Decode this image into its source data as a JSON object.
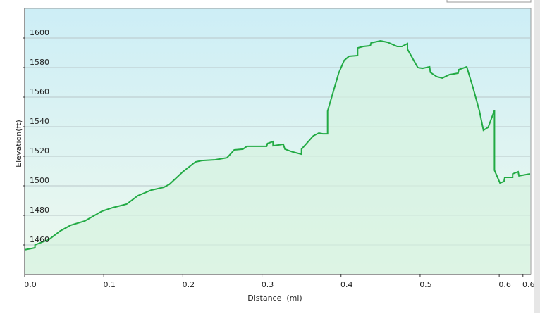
{
  "chart_data": {
    "type": "area-line",
    "x_label": "Distance  (mi)",
    "y_label": "Elevation(ft)",
    "x": [
      0,
      0.013,
      0.013,
      0.031,
      0.045,
      0.058,
      0.076,
      0.098,
      0.111,
      0.129,
      0.143,
      0.16,
      0.176,
      0.183,
      0.2,
      0.216,
      0.224,
      0.241,
      0.256,
      0.265,
      0.276,
      0.281,
      0.306,
      0.307,
      0.314,
      0.314,
      0.327,
      0.329,
      0.339,
      0.35,
      0.35,
      0.365,
      0.372,
      0.377,
      0.383,
      0.383,
      0.397,
      0.404,
      0.41,
      0.421,
      0.421,
      0.428,
      0.437,
      0.438,
      0.45,
      0.459,
      0.471,
      0.477,
      0.484,
      0.484,
      0.49,
      0.497,
      0.503,
      0.512,
      0.513,
      0.521,
      0.528,
      0.537,
      0.548,
      0.549,
      0.559,
      0.561,
      0.567,
      0.575,
      0.58,
      0.586,
      0.594,
      0.594,
      0.601,
      0.606,
      0.607,
      0.617,
      0.617,
      0.624,
      0.625,
      0.639
    ],
    "values": [
      1456.7,
      1458.1,
      1460,
      1463.8,
      1469.5,
      1473.3,
      1476.2,
      1482.9,
      1485.2,
      1487.6,
      1493.3,
      1497.1,
      1499,
      1501,
      1509.5,
      1516.2,
      1517.1,
      1517.6,
      1519,
      1524.3,
      1524.8,
      1526.7,
      1526.7,
      1528.6,
      1530,
      1527.1,
      1528.1,
      1524.8,
      1522.9,
      1521.4,
      1524.8,
      1533.8,
      1535.7,
      1535.2,
      1535.2,
      1550.5,
      1576.2,
      1584.8,
      1587.6,
      1588.1,
      1593.3,
      1594.3,
      1594.8,
      1596.7,
      1598.1,
      1597.1,
      1594.3,
      1594.3,
      1596.2,
      1592.4,
      1586.7,
      1580,
      1579.5,
      1580.5,
      1576.7,
      1573.8,
      1572.9,
      1575.2,
      1576.2,
      1578.6,
      1580.5,
      1576.7,
      1566.2,
      1550.5,
      1537.6,
      1539.5,
      1551,
      1510.5,
      1501.9,
      1502.9,
      1505.7,
      1505.7,
      1508.1,
      1509.5,
      1506.7,
      1508.1
    ],
    "color": "#22aa44",
    "fill": "#d6f2df",
    "xlim": [
      0,
      0.64
    ],
    "ylim": [
      1440,
      1620
    ],
    "xticks": [
      {
        "value": 0,
        "label": "0.0"
      },
      0.1,
      0.2,
      0.3,
      0.4,
      0.5,
      0.6,
      {
        "value": 0.63,
        "label": "0.6"
      }
    ],
    "yticks": [
      1460,
      1480,
      1500,
      1520,
      1540,
      1560,
      1580,
      1600
    ],
    "grid": true
  }
}
